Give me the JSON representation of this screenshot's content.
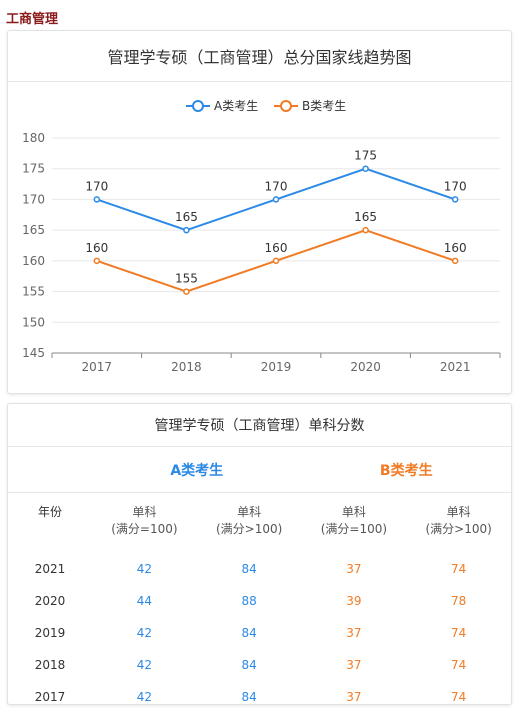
{
  "page_title": "工商管理",
  "colors": {
    "a": "#2b8ae6",
    "b": "#f07b24"
  },
  "chart_data": {
    "type": "line",
    "title": "管理学专硕（工商管理）总分国家线趋势图",
    "categories": [
      "2017",
      "2018",
      "2019",
      "2020",
      "2021"
    ],
    "series": [
      {
        "name": "A类考生",
        "values": [
          170,
          165,
          170,
          175,
          170
        ]
      },
      {
        "name": "B类考生",
        "values": [
          160,
          155,
          160,
          165,
          160
        ]
      }
    ],
    "xlabel": "",
    "ylabel": "",
    "ylim": [
      145,
      180
    ],
    "yticks": [
      "145",
      "150",
      "155",
      "160",
      "165",
      "170",
      "175",
      "180"
    ],
    "grid": true,
    "legend": "top-center"
  },
  "table": {
    "title": "管理学专硕（工商管理）单科分数",
    "group_a": "A类考生",
    "group_b": "B类考生",
    "year_header": "年份",
    "headers": [
      {
        "line1": "单科",
        "line2": "(满分=100)"
      },
      {
        "line1": "单科",
        "line2": "(满分>100)"
      },
      {
        "line1": "单科",
        "line2": "(满分=100)"
      },
      {
        "line1": "单科",
        "line2": "(满分>100)"
      }
    ],
    "rows": [
      {
        "year": "2021",
        "a1": "42",
        "a2": "84",
        "b1": "37",
        "b2": "74"
      },
      {
        "year": "2020",
        "a1": "44",
        "a2": "88",
        "b1": "39",
        "b2": "78"
      },
      {
        "year": "2019",
        "a1": "42",
        "a2": "84",
        "b1": "37",
        "b2": "74"
      },
      {
        "year": "2018",
        "a1": "42",
        "a2": "84",
        "b1": "37",
        "b2": "74"
      },
      {
        "year": "2017",
        "a1": "42",
        "a2": "84",
        "b1": "37",
        "b2": "74"
      }
    ]
  }
}
